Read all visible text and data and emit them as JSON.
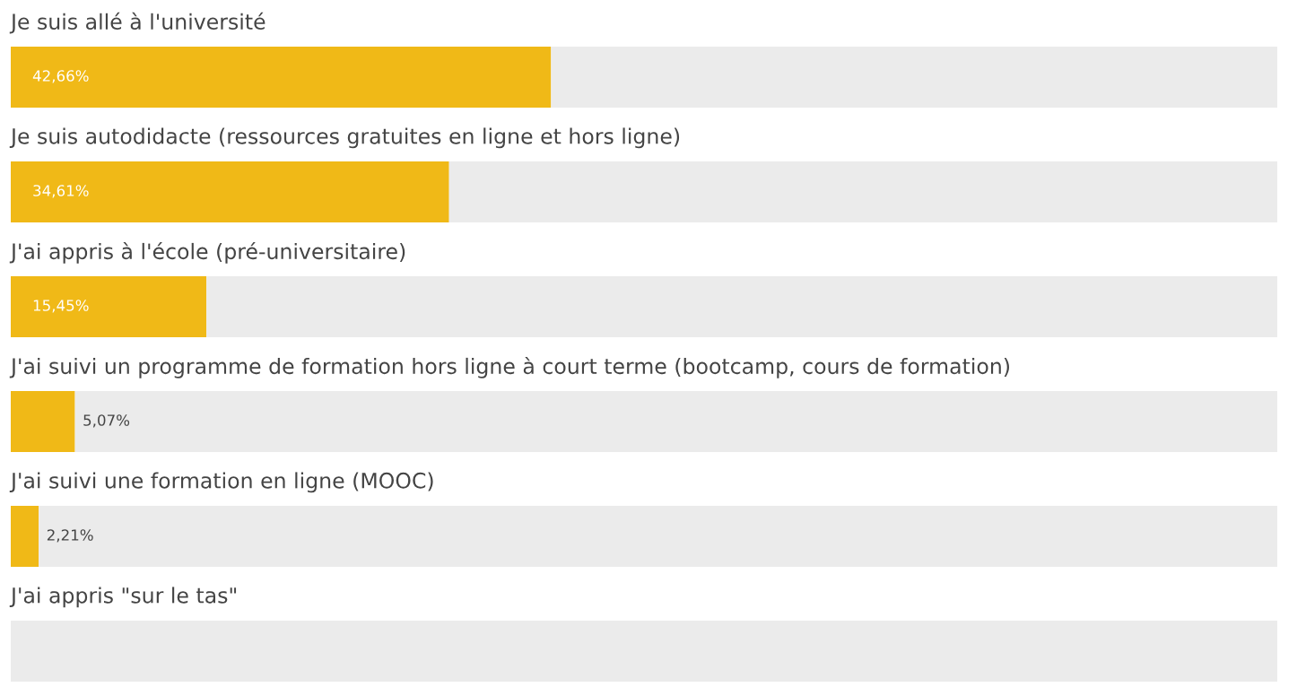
{
  "chart_data": {
    "type": "bar",
    "orientation": "horizontal",
    "categories": [
      "Je suis allé à l'université",
      "Je suis autodidacte (ressources gratuites en ligne et hors ligne)",
      "J'ai appris à l'école (pré-universitaire)",
      "J'ai suivi un programme de formation hors ligne à court terme (bootcamp, cours de formation)",
      "J'ai suivi une formation en ligne (MOOC)",
      "J'ai appris \"sur le tas\""
    ],
    "series": [
      {
        "color": "#f0b917",
        "values": [
          42.66,
          34.61,
          15.45,
          5.07,
          2.21,
          0
        ],
        "value_labels": [
          "42,66%",
          "34,61%",
          "15,45%",
          "5,07%",
          "2,21%",
          null
        ]
      },
      {
        "color": "#ebebeb",
        "values": [
          57.34,
          65.39,
          84.55,
          94.93,
          97.79,
          100
        ]
      }
    ],
    "stacked": true,
    "xlim": [
      0,
      100
    ],
    "tick_labels": false,
    "legend": false
  }
}
